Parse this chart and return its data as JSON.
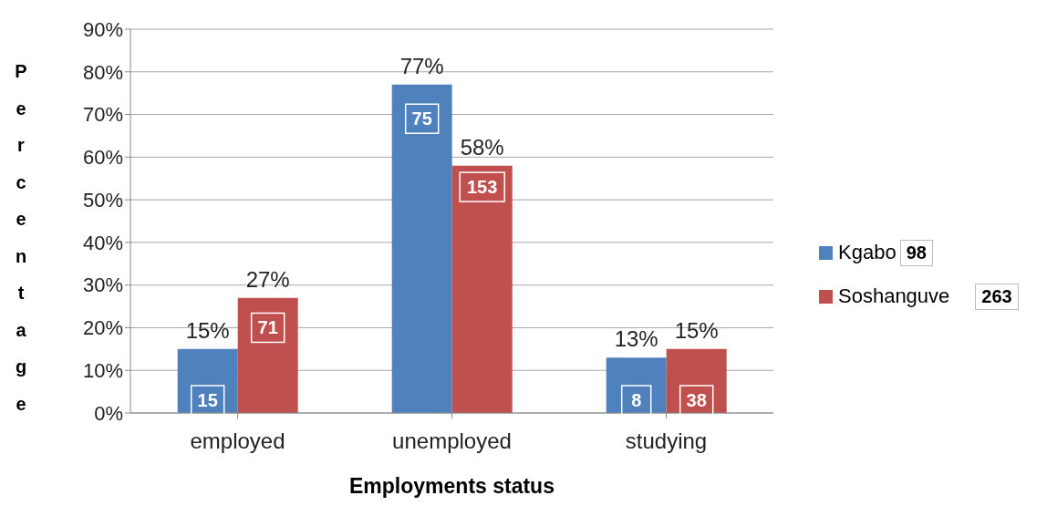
{
  "chart_data": {
    "type": "bar",
    "xlabel": "Employments status",
    "ylabel": "Percentage",
    "categories": [
      "employed",
      "unemployed",
      "studying"
    ],
    "series": [
      {
        "name": "Kgabo",
        "color": "#4f81bd",
        "values": [
          15,
          77,
          13
        ],
        "value_labels": [
          "15%",
          "77%",
          "13%"
        ]
      },
      {
        "name": "Soshanguve",
        "color": "#c0504d",
        "values": [
          27,
          58,
          15
        ],
        "value_labels": [
          "27%",
          "58%",
          "15%"
        ]
      }
    ],
    "ylim": [
      0,
      90
    ],
    "yticks": [
      {
        "value": 0,
        "label": "0%"
      },
      {
        "value": 10,
        "label": "10%"
      },
      {
        "value": 20,
        "label": "20%"
      },
      {
        "value": 30,
        "label": "30%"
      },
      {
        "value": 40,
        "label": "40%"
      },
      {
        "value": 50,
        "label": "50%"
      },
      {
        "value": 60,
        "label": "60%"
      },
      {
        "value": 70,
        "label": "70%"
      },
      {
        "value": 80,
        "label": "80%"
      },
      {
        "value": 90,
        "label": "90%"
      }
    ],
    "grid": "y",
    "legend": "right",
    "annotations": [
      {
        "text": "15",
        "x": "employed",
        "y": 3
      },
      {
        "text": "71",
        "x": "employed",
        "y": 20
      },
      {
        "text": "75",
        "x": "unemployed",
        "y": 69
      },
      {
        "text": "153",
        "x": "unemployed",
        "y": 53
      },
      {
        "text": "8",
        "x": "studying",
        "y": 3
      },
      {
        "text": "38",
        "x": "studying",
        "y": 3
      },
      "98",
      "263"
    ]
  }
}
